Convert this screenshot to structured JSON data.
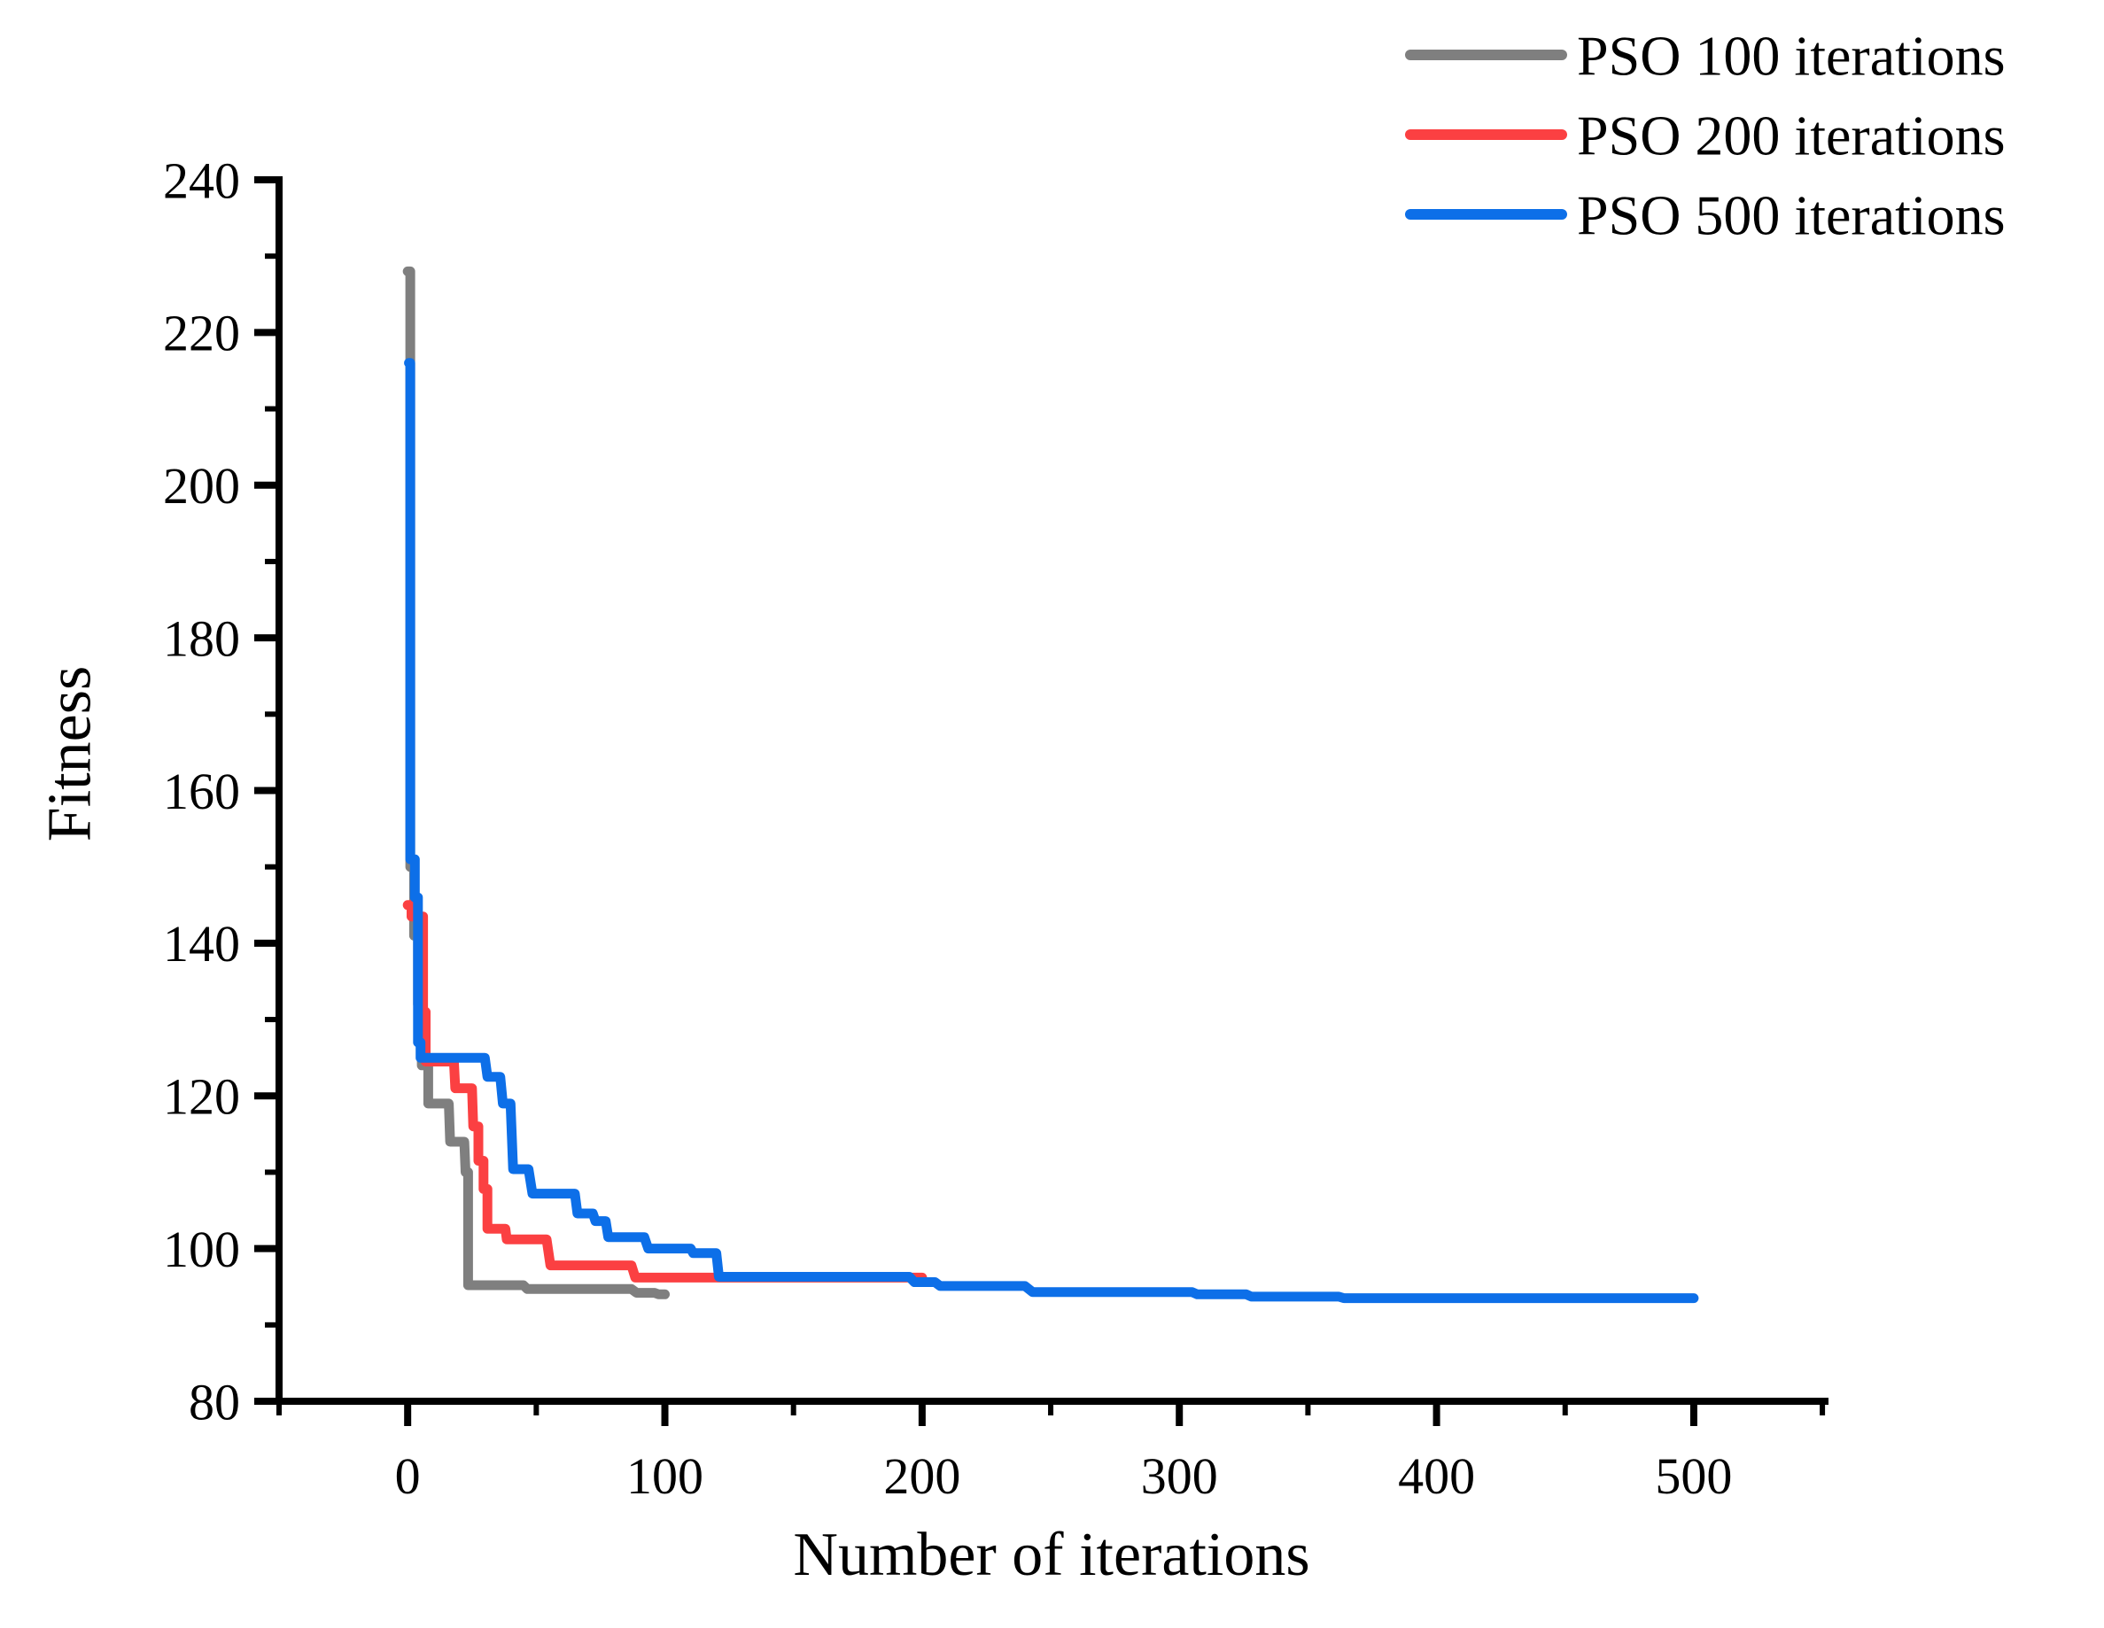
{
  "chart_data": {
    "type": "line",
    "title": "",
    "xlabel": "Number of iterations",
    "ylabel": "Fitness",
    "xlim": [
      -50,
      551
    ],
    "ylim": [
      80,
      240
    ],
    "x_major_ticks": [
      0,
      100,
      200,
      300,
      400,
      500
    ],
    "x_minor_ticks": [
      -50,
      50,
      150,
      250,
      350,
      450,
      550
    ],
    "y_major_ticks": [
      80,
      100,
      120,
      140,
      160,
      180,
      200,
      220,
      240
    ],
    "y_minor_ticks": [
      90,
      110,
      130,
      150,
      170,
      190,
      210,
      230
    ],
    "grid": false,
    "legend_position": "top-right",
    "axis_color": "#000000",
    "background_color": "#ffffff",
    "series": [
      {
        "name": "PSO 100 iterations",
        "color": "#7F7F7F",
        "points": [
          [
            0,
            228
          ],
          [
            1,
            228
          ],
          [
            1,
            150
          ],
          [
            2.5,
            150
          ],
          [
            2.5,
            141
          ],
          [
            4,
            141
          ],
          [
            4,
            132
          ],
          [
            5.5,
            132
          ],
          [
            5.5,
            124
          ],
          [
            8,
            124
          ],
          [
            8,
            119
          ],
          [
            16,
            119
          ],
          [
            16.5,
            114
          ],
          [
            22,
            114
          ],
          [
            22.5,
            110
          ],
          [
            23.5,
            110
          ],
          [
            23.5,
            95.2
          ],
          [
            45,
            95.2
          ],
          [
            46.5,
            94.7
          ],
          [
            87,
            94.7
          ],
          [
            89,
            94.2
          ],
          [
            96,
            94.2
          ],
          [
            97.5,
            94
          ],
          [
            100,
            94
          ]
        ]
      },
      {
        "name": "PSO 200 iterations",
        "color": "#FB4042",
        "points": [
          [
            0,
            145
          ],
          [
            1.5,
            145
          ],
          [
            1.5,
            143.5
          ],
          [
            6,
            143.5
          ],
          [
            6,
            131
          ],
          [
            7,
            131
          ],
          [
            7,
            124.5
          ],
          [
            18,
            124.5
          ],
          [
            18.5,
            121
          ],
          [
            25,
            121
          ],
          [
            25.5,
            116
          ],
          [
            27.5,
            116
          ],
          [
            27.5,
            111.5
          ],
          [
            29.5,
            111.5
          ],
          [
            29.5,
            107.8
          ],
          [
            31,
            107.8
          ],
          [
            31,
            102.6
          ],
          [
            38,
            102.6
          ],
          [
            38.5,
            101.2
          ],
          [
            54,
            101.2
          ],
          [
            55.5,
            97.8
          ],
          [
            87,
            97.8
          ],
          [
            88.5,
            96.2
          ],
          [
            200,
            96.2
          ]
        ]
      },
      {
        "name": "PSO 500 iterations",
        "color": "#0D6FE8",
        "points": [
          [
            0.5,
            216
          ],
          [
            1,
            216
          ],
          [
            1,
            151
          ],
          [
            2.8,
            151
          ],
          [
            2.8,
            146
          ],
          [
            4,
            146
          ],
          [
            4,
            127
          ],
          [
            5,
            127
          ],
          [
            5,
            125
          ],
          [
            30,
            125
          ],
          [
            31,
            122.5
          ],
          [
            36,
            122.5
          ],
          [
            37,
            119
          ],
          [
            40,
            119
          ],
          [
            41,
            110.4
          ],
          [
            47,
            110.4
          ],
          [
            48.5,
            107.2
          ],
          [
            65,
            107.2
          ],
          [
            66,
            104.6
          ],
          [
            72,
            104.6
          ],
          [
            73,
            103.6
          ],
          [
            77,
            103.6
          ],
          [
            78,
            101.5
          ],
          [
            92,
            101.5
          ],
          [
            93.5,
            100
          ],
          [
            110,
            100
          ],
          [
            111,
            99.4
          ],
          [
            120,
            99.4
          ],
          [
            121,
            96.3
          ],
          [
            195,
            96.3
          ],
          [
            197,
            95.6
          ],
          [
            205,
            95.6
          ],
          [
            207,
            95.1
          ],
          [
            240,
            95.1
          ],
          [
            243,
            94.3
          ],
          [
            305,
            94.3
          ],
          [
            307,
            94
          ],
          [
            326,
            94
          ],
          [
            328,
            93.7
          ],
          [
            362,
            93.7
          ],
          [
            364,
            93.5
          ],
          [
            500,
            93.5
          ]
        ]
      }
    ]
  }
}
